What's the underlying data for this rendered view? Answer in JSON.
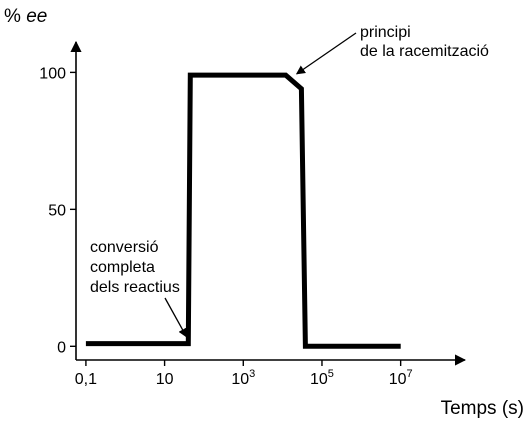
{
  "chart_data": {
    "type": "line",
    "ylabel": {
      "prefix": "% ",
      "italic": "ee"
    },
    "xlabel": "Temps (s)",
    "x_scale": "log10",
    "xlim": [
      0.056,
      100000000
    ],
    "ylim": [
      -5,
      110
    ],
    "grid": false,
    "x_ticks": [
      {
        "value": 0.1,
        "label": "0,1"
      },
      {
        "value": 10,
        "label": "10"
      },
      {
        "value": 1000,
        "label": "10",
        "sup": "3"
      },
      {
        "value": 100000,
        "label": "10",
        "sup": "5"
      },
      {
        "value": 10000000,
        "label": "10",
        "sup": "7"
      }
    ],
    "y_ticks": [
      {
        "value": 0,
        "label": "0"
      },
      {
        "value": 50,
        "label": "50"
      },
      {
        "value": 100,
        "label": "100"
      }
    ],
    "series": [
      {
        "color": "#000000",
        "x": [
          0.1,
          40,
          45,
          12000,
          30000,
          38000,
          40000,
          10000000
        ],
        "y": [
          1,
          1,
          99,
          99,
          94,
          0,
          0,
          0
        ]
      }
    ],
    "annotations": [
      {
        "lines": [
          "principi",
          "de la racemització"
        ],
        "point": {
          "x": 18000,
          "y": 98
        }
      },
      {
        "lines": [
          "conversió",
          "completa",
          "dels reactius"
        ],
        "point": {
          "x": 43,
          "y": 2
        }
      }
    ]
  }
}
